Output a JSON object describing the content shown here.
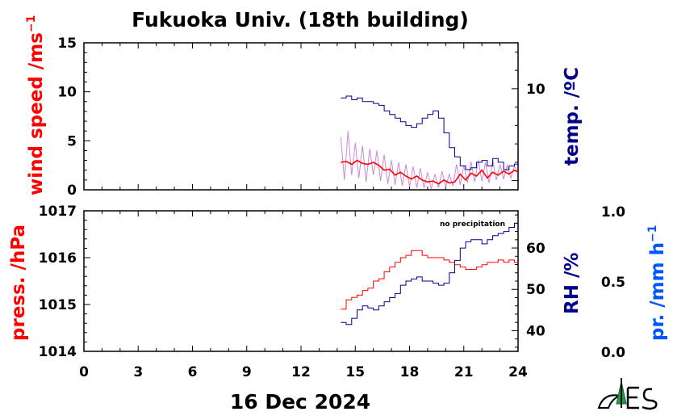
{
  "title": "Fukuoka Univ. (18th building)",
  "date_label": "16 Dec 2024",
  "colors": {
    "wind": "#ff0000",
    "wind_raw": "#cc88dd",
    "temp": "#00008b",
    "pressure": "#ff0000",
    "rh": "#00008b",
    "precip": "#0055ff",
    "axis": "#000000"
  },
  "chart_data": [
    {
      "type": "line",
      "panel": "top",
      "x_ticks": [
        0,
        3,
        6,
        9,
        12,
        15,
        18,
        21,
        24
      ],
      "xlim": [
        0,
        24
      ],
      "left_axis": {
        "label": "wind speed /ms",
        "label_sup": "−1",
        "ylim": [
          0,
          15
        ],
        "ticks": [
          0,
          5,
          10,
          15
        ]
      },
      "right_axis": {
        "label": "temp. /ºC",
        "ylim": [
          4.5,
          12.5
        ],
        "ticks": [
          10
        ]
      },
      "series": [
        {
          "name": "wind speed",
          "axis": "left",
          "x": [
            14.2,
            14.5,
            14.8,
            15.1,
            15.4,
            15.7,
            16.0,
            16.3,
            16.6,
            16.9,
            17.2,
            17.5,
            17.8,
            18.1,
            18.4,
            18.7,
            19.0,
            19.3,
            19.6,
            19.9,
            20.2,
            20.5,
            20.8,
            21.1,
            21.4,
            21.7,
            22.0,
            22.3,
            22.6,
            22.9,
            23.2,
            23.5,
            23.8,
            24.0
          ],
          "y": [
            2.8,
            2.9,
            2.6,
            3.0,
            2.7,
            2.6,
            2.8,
            2.5,
            2.0,
            2.1,
            1.5,
            1.8,
            1.4,
            1.1,
            1.4,
            1.0,
            0.8,
            0.9,
            0.6,
            1.0,
            0.7,
            0.8,
            1.6,
            1.0,
            1.7,
            1.4,
            2.0,
            1.2,
            1.8,
            1.5,
            1.9,
            1.6,
            2.0,
            1.8
          ]
        },
        {
          "name": "wind speed (raw)",
          "axis": "left",
          "x": [
            14.2,
            14.4,
            14.6,
            14.8,
            15.0,
            15.2,
            15.4,
            15.6,
            15.8,
            16.0,
            16.2,
            16.4,
            16.6,
            16.8,
            17.0,
            17.2,
            17.4,
            17.6,
            17.8,
            18.0,
            18.2,
            18.4,
            18.6,
            18.8,
            19.0,
            19.2,
            19.4,
            19.6,
            19.8,
            20.0,
            20.2,
            20.4,
            20.6,
            20.8,
            21.0,
            21.2,
            21.4,
            21.6,
            21.8,
            22.0,
            22.2,
            22.4,
            22.6,
            22.8,
            23.0,
            23.2,
            23.4,
            23.6,
            23.8,
            24.0
          ],
          "y": [
            5.4,
            1.0,
            6.0,
            1.5,
            4.8,
            1.2,
            4.5,
            0.8,
            4.2,
            1.5,
            4.0,
            0.9,
            3.6,
            0.6,
            3.0,
            0.5,
            2.8,
            0.4,
            2.6,
            0.3,
            2.4,
            0.2,
            2.2,
            0.2,
            1.8,
            0.1,
            1.6,
            0.2,
            1.9,
            0.3,
            1.6,
            0.4,
            2.6,
            0.5,
            2.5,
            0.7,
            2.9,
            0.8,
            3.0,
            0.9,
            2.8,
            0.7,
            3.0,
            1.0,
            2.6,
            1.1,
            2.5,
            1.2,
            2.4,
            1.8
          ]
        },
        {
          "name": "temperature",
          "axis": "right",
          "x": [
            14.2,
            14.5,
            14.8,
            15.1,
            15.4,
            15.7,
            16.0,
            16.3,
            16.6,
            16.9,
            17.2,
            17.5,
            17.8,
            18.1,
            18.4,
            18.7,
            19.0,
            19.3,
            19.6,
            19.9,
            20.2,
            20.5,
            20.8,
            21.1,
            21.4,
            21.7,
            22.0,
            22.3,
            22.6,
            22.9,
            23.2,
            23.5,
            23.8,
            24.0
          ],
          "y": [
            9.5,
            9.6,
            9.4,
            9.5,
            9.3,
            9.3,
            9.2,
            9.1,
            8.8,
            8.6,
            8.4,
            8.2,
            8.0,
            7.9,
            8.1,
            8.4,
            8.6,
            8.8,
            8.4,
            7.6,
            6.8,
            6.3,
            5.8,
            5.6,
            5.7,
            6.0,
            6.1,
            5.8,
            6.2,
            6.0,
            5.6,
            5.8,
            5.9,
            6.0
          ]
        }
      ]
    },
    {
      "type": "line",
      "panel": "bottom",
      "x_ticks": [
        0,
        3,
        6,
        9,
        12,
        15,
        18,
        21,
        24
      ],
      "xlim": [
        0,
        24
      ],
      "xlabels": [
        "0",
        "3",
        "6",
        "9",
        "12",
        "15",
        "18",
        "21",
        "24"
      ],
      "left_axis": {
        "label": "press. /hPa",
        "ylim": [
          1014,
          1017
        ],
        "ticks": [
          1014,
          1015,
          1016,
          1017
        ]
      },
      "right_axis": {
        "label": "RH /%",
        "ylim": [
          35,
          69
        ],
        "ticks": [
          40,
          50,
          60
        ]
      },
      "precip_axis": {
        "label": "pr. /mm h",
        "label_sup": "−1",
        "ylim": [
          0.0,
          1.0
        ],
        "ticks": [
          "0.0",
          "0.5",
          "1.0"
        ]
      },
      "annotation": "no precipitation",
      "series": [
        {
          "name": "pressure",
          "axis": "left",
          "x": [
            14.2,
            14.5,
            14.8,
            15.1,
            15.4,
            15.7,
            16.0,
            16.3,
            16.6,
            16.9,
            17.2,
            17.5,
            17.8,
            18.1,
            18.4,
            18.7,
            19.0,
            19.3,
            19.6,
            19.9,
            20.2,
            20.5,
            20.8,
            21.1,
            21.4,
            21.7,
            22.0,
            22.3,
            22.6,
            22.9,
            23.2,
            23.5,
            23.8,
            24.0
          ],
          "y": [
            1014.9,
            1015.1,
            1015.15,
            1015.2,
            1015.3,
            1015.35,
            1015.5,
            1015.55,
            1015.7,
            1015.8,
            1015.9,
            1016.0,
            1016.05,
            1016.15,
            1016.15,
            1016.05,
            1016.0,
            1016.0,
            1016.0,
            1015.95,
            1015.9,
            1015.85,
            1015.8,
            1015.75,
            1015.75,
            1015.8,
            1015.85,
            1015.9,
            1015.9,
            1015.95,
            1015.9,
            1015.95,
            1015.9,
            1015.9
          ]
        },
        {
          "name": "relative humidity",
          "axis": "right",
          "x": [
            14.2,
            14.5,
            14.8,
            15.1,
            15.4,
            15.7,
            16.0,
            16.3,
            16.6,
            16.9,
            17.2,
            17.5,
            17.8,
            18.1,
            18.4,
            18.7,
            19.0,
            19.3,
            19.6,
            19.9,
            20.2,
            20.5,
            20.8,
            21.1,
            21.4,
            21.7,
            22.0,
            22.3,
            22.6,
            22.9,
            23.2,
            23.5,
            23.8,
            24.0
          ],
          "y": [
            42,
            41.5,
            43,
            45,
            46,
            45.5,
            45,
            46,
            47,
            48,
            49,
            51,
            52,
            52.5,
            53,
            52,
            52,
            51.5,
            51,
            51.5,
            54,
            57,
            60,
            61.5,
            62,
            62,
            61,
            62,
            63,
            63.5,
            64,
            65,
            66,
            66
          ]
        }
      ]
    }
  ]
}
